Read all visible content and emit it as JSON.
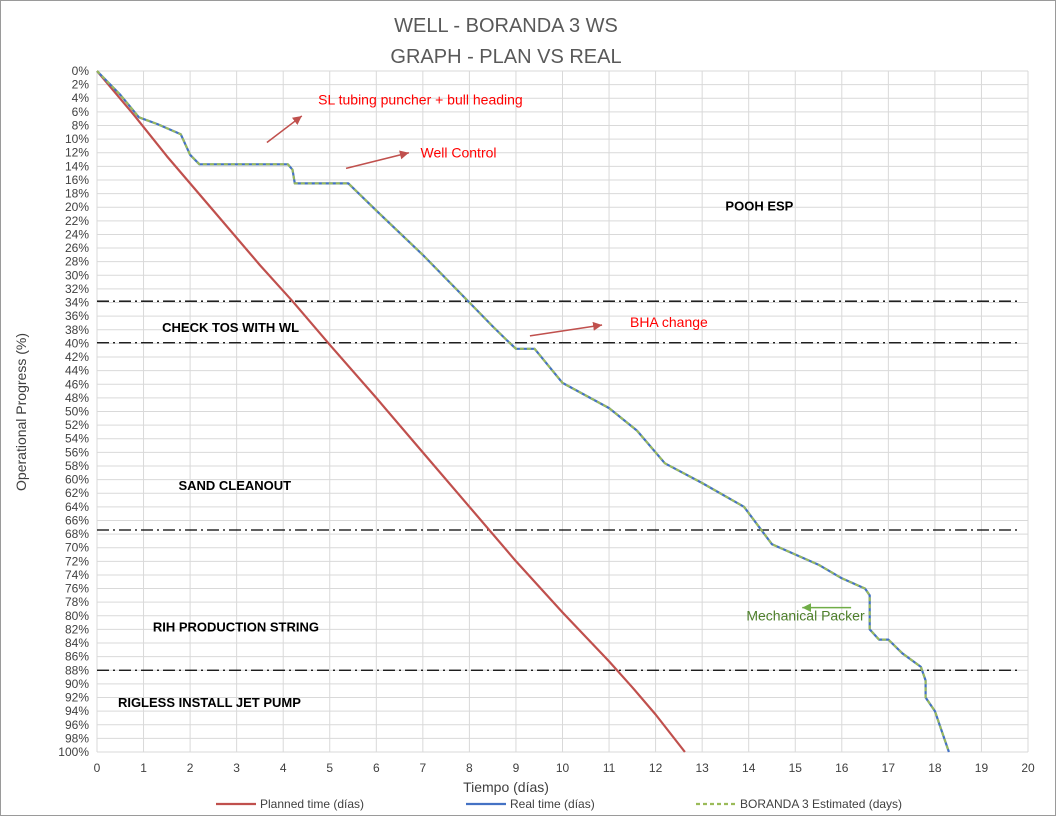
{
  "chart_data": {
    "type": "line",
    "title": [
      "WELL -  BORANDA 3 WS",
      "GRAPH  - PLAN VS REAL"
    ],
    "xlabel": "Tiempo (días)",
    "ylabel": "Operational Progress (%)",
    "xlim": [
      0,
      20
    ],
    "ylim": [
      0,
      100
    ],
    "y_inverted": true,
    "x_ticks": [
      "0",
      "1",
      "2",
      "3",
      "4",
      "5",
      "6",
      "7",
      "8",
      "9",
      "10",
      "11",
      "12",
      "13",
      "14",
      "15",
      "16",
      "17",
      "18",
      "19",
      "20"
    ],
    "y_ticks": [
      "0%",
      "2%",
      "4%",
      "6%",
      "8%",
      "10%",
      "12%",
      "14%",
      "16%",
      "18%",
      "20%",
      "22%",
      "24%",
      "26%",
      "28%",
      "30%",
      "32%",
      "34%",
      "36%",
      "38%",
      "40%",
      "42%",
      "44%",
      "46%",
      "48%",
      "50%",
      "52%",
      "54%",
      "56%",
      "58%",
      "60%",
      "62%",
      "64%",
      "66%",
      "68%",
      "70%",
      "72%",
      "74%",
      "76%",
      "78%",
      "80%",
      "82%",
      "84%",
      "86%",
      "88%",
      "90%",
      "92%",
      "94%",
      "96%",
      "98%",
      "100%"
    ],
    "grid": true,
    "legend_position": "bottom",
    "series": [
      {
        "name": "Planned time (días)",
        "color": "#c0504d",
        "style": "solid",
        "x": [
          0,
          0.8,
          1.5,
          2.5,
          3.5,
          4.2,
          5.0,
          6.0,
          7.0,
          8.0,
          9.0,
          10.0,
          11.0,
          11.5,
          12.0,
          12.63
        ],
        "y": [
          0,
          6.5,
          12.5,
          20.5,
          28.5,
          33.8,
          40.2,
          48.0,
          56.0,
          64.0,
          72.0,
          79.5,
          86.7,
          90.5,
          94.5,
          100
        ]
      },
      {
        "name": "Real time (días)",
        "color": "#4472c4",
        "style": "solid",
        "x": [
          0,
          0.5,
          0.9,
          1.3,
          1.8,
          2.0,
          2.2,
          3.0,
          4.0,
          4.1,
          4.2,
          4.25,
          5.0,
          5.4,
          6.0,
          7.0,
          8.0,
          8.5,
          8.8,
          9.0,
          9.4,
          10.0,
          11.0,
          11.6,
          12.2,
          13.0,
          13.9,
          14.5,
          15.5,
          16.0,
          16.5,
          16.6,
          16.6,
          16.8,
          17.0,
          17.3,
          17.7,
          17.8,
          17.8,
          18.0,
          18.3
        ],
        "y": [
          0,
          3.5,
          6.8,
          7.8,
          9.3,
          12.3,
          13.7,
          13.7,
          13.7,
          13.7,
          14.5,
          16.5,
          16.5,
          16.5,
          20.5,
          27.0,
          34.0,
          37.5,
          39.5,
          40.8,
          40.8,
          45.8,
          49.5,
          52.8,
          57.6,
          60.5,
          64.0,
          69.5,
          72.5,
          74.5,
          76.0,
          77.0,
          82.0,
          83.5,
          83.5,
          85.5,
          87.5,
          89.5,
          92.0,
          94.0,
          100
        ]
      },
      {
        "name": "BORANDA 3 Estimated (days)",
        "color": "#9bbb59",
        "style": "dashed",
        "x": [
          0,
          0.5,
          0.9,
          1.3,
          1.8,
          2.0,
          2.2,
          3.0,
          4.0,
          4.1,
          4.2,
          4.25,
          5.0,
          5.4,
          6.0,
          7.0,
          8.0,
          8.5,
          8.8,
          9.0,
          9.4,
          10.0,
          11.0,
          11.6,
          12.2,
          13.0,
          13.9,
          14.5,
          15.5,
          16.0,
          16.5,
          16.6,
          16.6,
          16.8,
          17.0,
          17.3,
          17.7,
          17.8,
          17.8,
          18.0,
          18.3
        ],
        "y": [
          0,
          3.5,
          6.8,
          7.8,
          9.3,
          12.3,
          13.7,
          13.7,
          13.7,
          13.7,
          14.5,
          16.5,
          16.5,
          16.5,
          20.5,
          27.0,
          34.0,
          37.5,
          39.5,
          40.8,
          40.8,
          45.8,
          49.5,
          52.8,
          57.6,
          60.5,
          64.0,
          69.5,
          72.5,
          74.5,
          76.0,
          77.0,
          82.0,
          83.5,
          83.5,
          85.5,
          87.5,
          89.5,
          92.0,
          94.0,
          100
        ]
      }
    ],
    "phase_lines": [
      33.8,
      39.9,
      67.4,
      88.0
    ],
    "phases": [
      {
        "label": "POOH ESP",
        "x": 13.5,
        "y": 20.5
      },
      {
        "label": "CHECK TOS WITH WL",
        "x": 1.4,
        "y": 38.3
      },
      {
        "label": "SAND CLEANOUT",
        "x": 1.75,
        "y": 61.5
      },
      {
        "label": "RIH PRODUCTION STRING",
        "x": 1.2,
        "y": 82.3
      },
      {
        "label": "RIGLESS INSTALL JET PUMP",
        "x": 0.45,
        "y": 93.4
      }
    ],
    "annotations": [
      {
        "text": "SL tubing puncher + bull heading",
        "color": "red",
        "x": 4.75,
        "y": 4.9,
        "arrow_from": [
          3.65,
          10.5
        ],
        "arrow_to": [
          4.4,
          6.6
        ]
      },
      {
        "text": "Well Control",
        "color": "red",
        "x": 6.95,
        "y": 12.7,
        "arrow_from": [
          5.35,
          14.3
        ],
        "arrow_to": [
          6.7,
          12.0
        ]
      },
      {
        "text": "BHA change",
        "color": "red",
        "x": 11.45,
        "y": 37.6,
        "arrow_from": [
          9.3,
          38.9
        ],
        "arrow_to": [
          10.85,
          37.3
        ]
      },
      {
        "text": "Mechanical Packer",
        "color": "green",
        "x": 13.95,
        "y": 80.7,
        "arrow_from": [
          16.2,
          78.8
        ],
        "arrow_to": [
          15.15,
          78.8
        ]
      }
    ]
  }
}
